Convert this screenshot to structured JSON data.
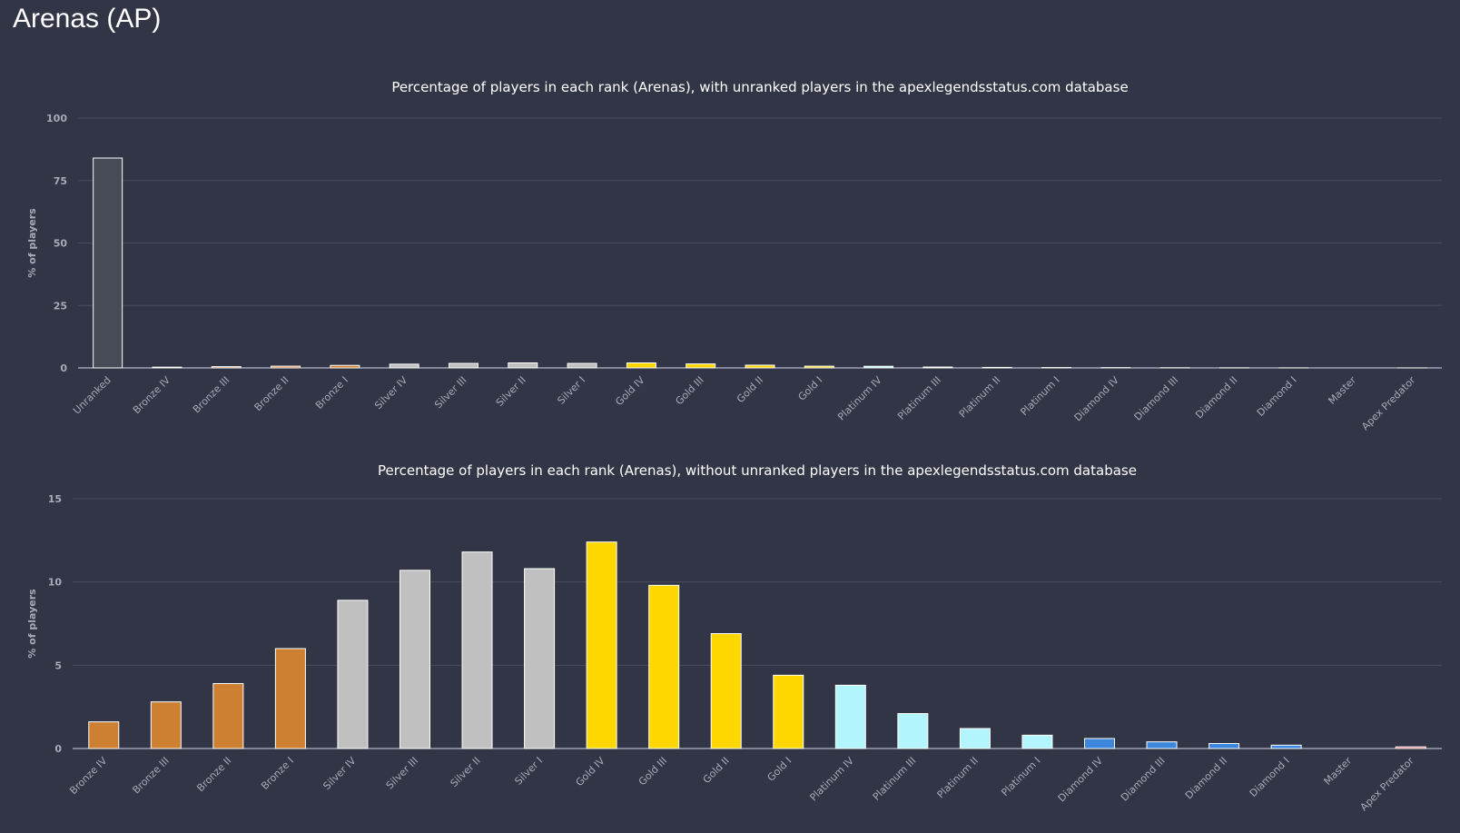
{
  "page": {
    "title": "Arenas (AP)"
  },
  "chart_data": [
    {
      "type": "bar",
      "title": "Percentage of players in each rank (Arenas), with unranked players in the apexlegendsstatus.com database",
      "ylabel": "% of players",
      "ylim": [
        0,
        100
      ],
      "yticks": [
        0,
        25,
        50,
        75,
        100
      ],
      "grid": true,
      "categories": [
        "Unranked",
        "Bronze IV",
        "Bronze III",
        "Bronze II",
        "Bronze I",
        "Silver IV",
        "Silver III",
        "Silver II",
        "Silver I",
        "Gold IV",
        "Gold III",
        "Gold II",
        "Gold I",
        "Platinum IV",
        "Platinum III",
        "Platinum II",
        "Platinum I",
        "Diamond IV",
        "Diamond III",
        "Diamond II",
        "Diamond I",
        "Master",
        "Apex Predator"
      ],
      "values": [
        84.0,
        0.3,
        0.5,
        0.7,
        1.0,
        1.5,
        1.8,
        2.0,
        1.8,
        2.0,
        1.6,
        1.1,
        0.7,
        0.65,
        0.35,
        0.2,
        0.14,
        0.11,
        0.07,
        0.05,
        0.03,
        0,
        0.01
      ],
      "colors": [
        "#474a57",
        "#cd7f32",
        "#cd7f32",
        "#cd7f32",
        "#cd7f32",
        "#c0c0c0",
        "#c0c0c0",
        "#c0c0c0",
        "#c0c0c0",
        "#ffd700",
        "#ffd700",
        "#ffd700",
        "#ffd700",
        "#b3f5fc",
        "#b3f5fc",
        "#b3f5fc",
        "#b3f5fc",
        "#3c86dc",
        "#3c86dc",
        "#3c86dc",
        "#3c86dc",
        "#b64fe0",
        "#e25a6a"
      ]
    },
    {
      "type": "bar",
      "title": "Percentage of players in each rank (Arenas), without unranked players in the apexlegendsstatus.com database",
      "ylabel": "% of players",
      "ylim": [
        0,
        15
      ],
      "yticks": [
        0,
        5,
        10,
        15
      ],
      "grid": true,
      "categories": [
        "Bronze IV",
        "Bronze III",
        "Bronze II",
        "Bronze I",
        "Silver IV",
        "Silver III",
        "Silver II",
        "Silver I",
        "Gold IV",
        "Gold III",
        "Gold II",
        "Gold I",
        "Platinum IV",
        "Platinum III",
        "Platinum II",
        "Platinum I",
        "Diamond IV",
        "Diamond III",
        "Diamond II",
        "Diamond I",
        "Master",
        "Apex Predator"
      ],
      "values": [
        1.6,
        2.8,
        3.9,
        6.0,
        8.9,
        10.7,
        11.8,
        10.8,
        12.4,
        9.8,
        6.9,
        4.4,
        3.8,
        2.1,
        1.2,
        0.8,
        0.6,
        0.4,
        0.3,
        0.2,
        0,
        0.1
      ],
      "colors": [
        "#cd7f32",
        "#cd7f32",
        "#cd7f32",
        "#cd7f32",
        "#c0c0c0",
        "#c0c0c0",
        "#c0c0c0",
        "#c0c0c0",
        "#ffd700",
        "#ffd700",
        "#ffd700",
        "#ffd700",
        "#b3f5fc",
        "#b3f5fc",
        "#b3f5fc",
        "#b3f5fc",
        "#3c86dc",
        "#3c86dc",
        "#3c86dc",
        "#3c86dc",
        "#b64fe0",
        "#e25a6a"
      ]
    }
  ]
}
